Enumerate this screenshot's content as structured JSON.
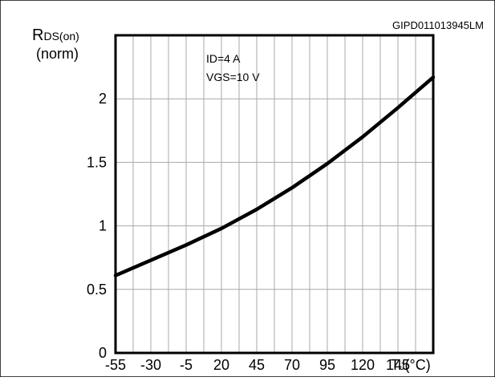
{
  "chart_data": {
    "type": "line",
    "title": "",
    "code_label": "GIPD011013945LM",
    "ylabel": {
      "main": "R",
      "sub": "DS(on)",
      "unit": "(norm)"
    },
    "xlabel": {
      "main": "T",
      "sub": "J",
      "unit": "(°C)"
    },
    "annotation_lines": [
      "ID=4 A",
      "VGS=10 V"
    ],
    "xlim": [
      -55,
      170
    ],
    "ylim": [
      0,
      2.5
    ],
    "x_ticks": [
      -55,
      -30,
      -5,
      20,
      45,
      70,
      95,
      120,
      145
    ],
    "x_tick_labels": [
      "-55",
      "-30",
      "-5",
      "20",
      "45",
      "70",
      "95",
      "120",
      "145"
    ],
    "y_ticks": [
      0,
      0.5,
      1,
      1.5,
      2
    ],
    "y_tick_labels": [
      "0",
      "0.5",
      "1",
      "1.5",
      "2"
    ],
    "grid": true,
    "series": [
      {
        "x": [
          -55,
          -30,
          -5,
          20,
          45,
          70,
          95,
          120,
          145,
          170
        ],
        "y": [
          0.61,
          0.73,
          0.85,
          0.98,
          1.13,
          1.3,
          1.49,
          1.7,
          1.93,
          2.17
        ]
      }
    ]
  }
}
